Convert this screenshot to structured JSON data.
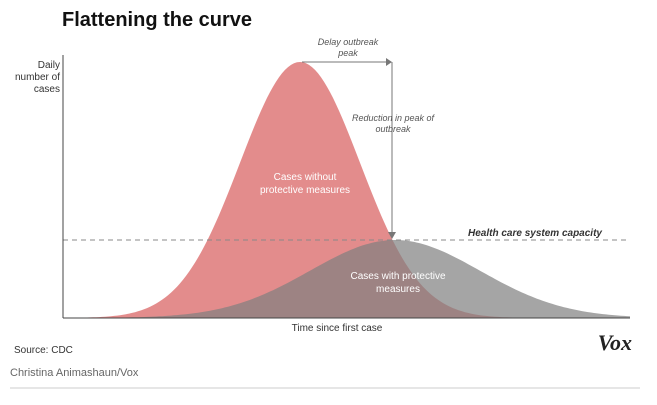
{
  "header": {
    "title": "Flattening the curve"
  },
  "axes": {
    "y_label": [
      "Daily",
      "number of",
      "cases"
    ],
    "x_label": "Time since first case"
  },
  "annotations": {
    "delay": [
      "Delay outbreak",
      "peak"
    ],
    "reduction": [
      "Reduction in peak of",
      "outbreak"
    ],
    "capacity": "Health care system capacity",
    "without": [
      "Cases without",
      "protective measures"
    ],
    "with": [
      "Cases with protective",
      "measures"
    ]
  },
  "footer": {
    "source": "Source: CDC",
    "credit": "Christina Animashaun/Vox",
    "logo": "Vox"
  }
}
